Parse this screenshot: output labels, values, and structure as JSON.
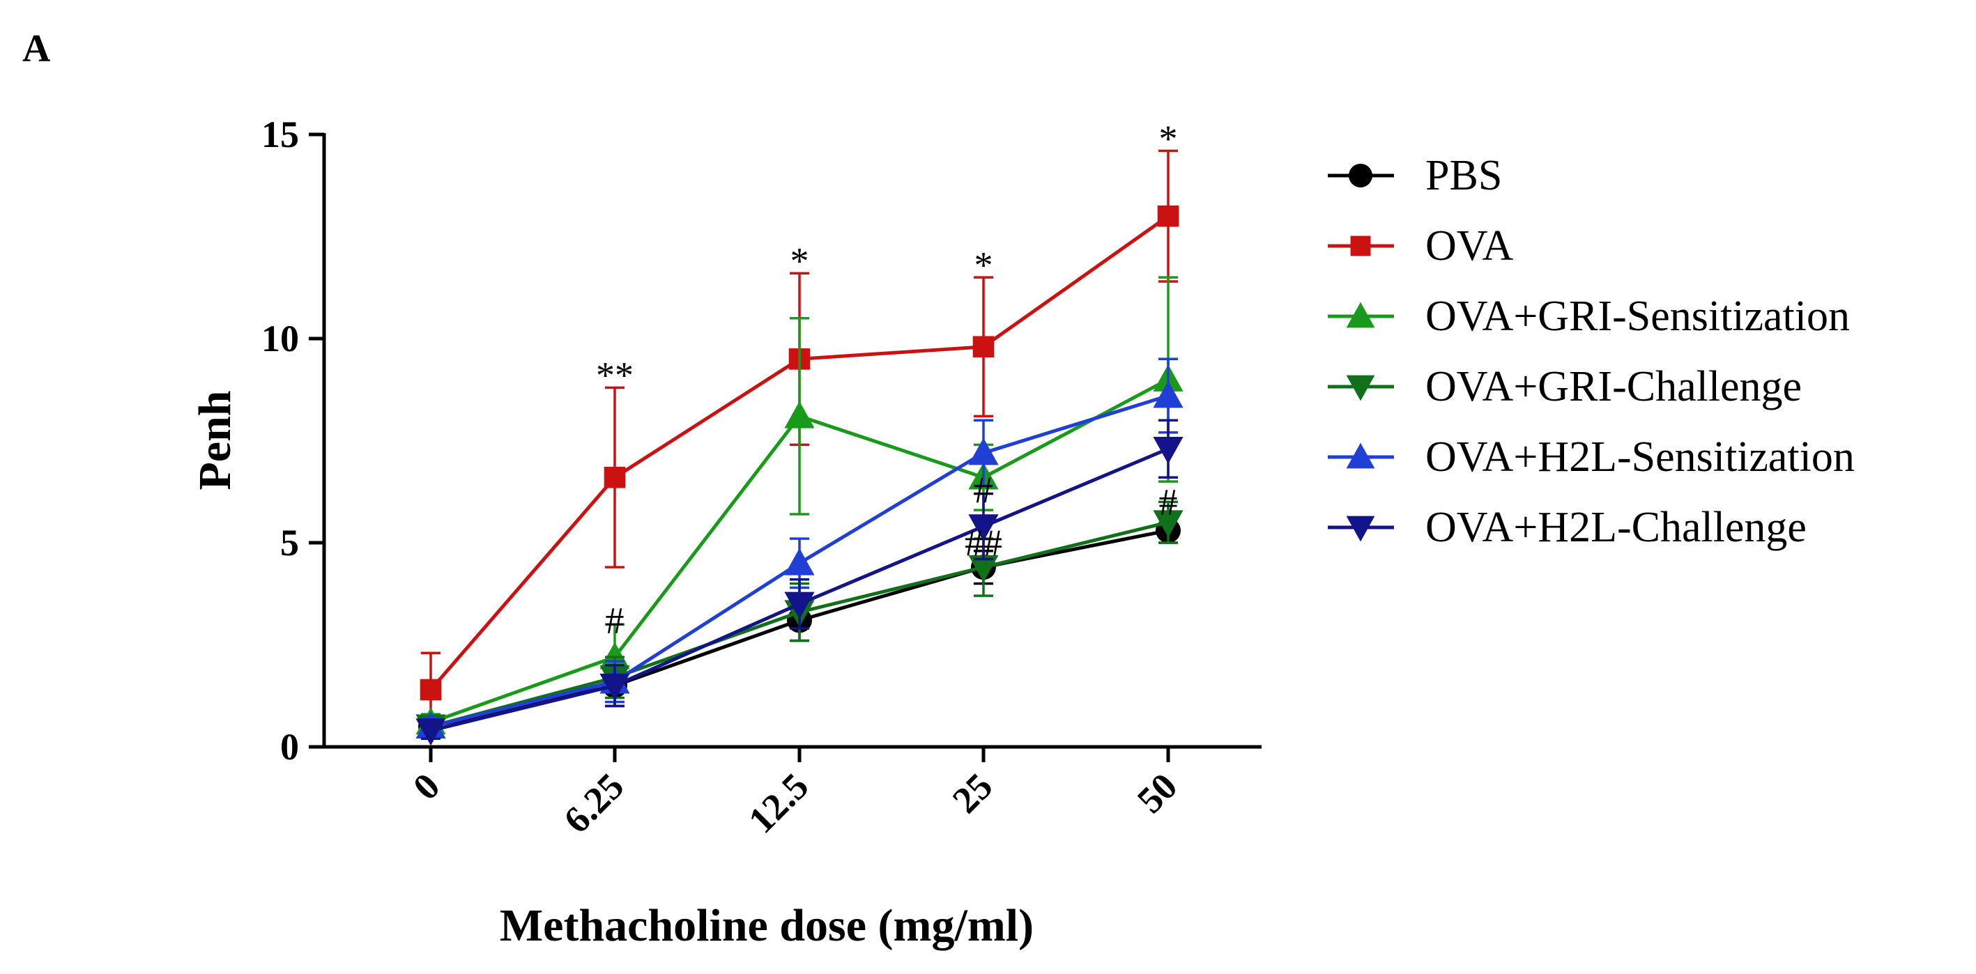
{
  "chart_data": {
    "type": "line",
    "panel_label": "A",
    "title": "",
    "xlabel": "Methacholine dose (mg/ml)",
    "ylabel": "Penh",
    "categories": [
      "0",
      "6.25",
      "12.5",
      "25",
      "50"
    ],
    "ylim": [
      0,
      15
    ],
    "yticks": [
      {
        "value": 0,
        "label": "0"
      },
      {
        "value": 5,
        "label": "5"
      },
      {
        "value": 10,
        "label": "10"
      },
      {
        "value": 15,
        "label": "15"
      }
    ],
    "grid": false,
    "legend_position": "right",
    "series": [
      {
        "name": "PBS",
        "color": "#000000",
        "marker": "circle",
        "values": [
          0.5,
          1.5,
          3.1,
          4.4,
          5.3
        ],
        "errors": [
          0.2,
          0.5,
          0.5,
          0.4,
          0.3
        ]
      },
      {
        "name": "OVA",
        "color": "#cc1111",
        "marker": "square",
        "values": [
          1.4,
          6.6,
          9.5,
          9.8,
          13.0
        ],
        "errors": [
          0.9,
          2.2,
          2.1,
          1.7,
          1.6
        ]
      },
      {
        "name": "OVA+GRI-Sensitization",
        "color": "#1a9a1a",
        "marker": "triangle-up",
        "values": [
          0.6,
          2.2,
          8.1,
          6.6,
          9.0
        ],
        "errors": [
          0.2,
          0.8,
          2.4,
          0.8,
          2.5
        ]
      },
      {
        "name": "OVA+GRI-Challenge",
        "color": "#11701a",
        "marker": "triangle-down",
        "values": [
          0.5,
          1.7,
          3.3,
          4.4,
          5.5
        ],
        "errors": [
          0.2,
          0.5,
          0.7,
          0.7,
          0.5
        ]
      },
      {
        "name": "OVA+H2L-Sensitization",
        "color": "#1f3fd6",
        "marker": "triangle-up",
        "values": [
          0.5,
          1.6,
          4.5,
          7.2,
          8.6
        ],
        "errors": [
          0.2,
          0.5,
          0.6,
          0.8,
          0.9
        ]
      },
      {
        "name": "OVA+H2L-Challenge",
        "color": "#13138a",
        "marker": "triangle-down",
        "values": [
          0.4,
          1.5,
          3.5,
          5.4,
          7.3
        ],
        "errors": [
          0.2,
          0.5,
          0.6,
          0.8,
          0.7
        ]
      }
    ],
    "annotations": [
      {
        "text": "**",
        "category_index": 1,
        "y": 9.1
      },
      {
        "text": "#",
        "category_index": 1,
        "y": 3.1
      },
      {
        "text": "*",
        "category_index": 2,
        "y": 11.9
      },
      {
        "text": "*",
        "category_index": 3,
        "y": 11.8
      },
      {
        "text": "#",
        "category_index": 3,
        "y": 6.3
      },
      {
        "text": "##",
        "category_index": 3,
        "y": 5.0
      },
      {
        "text": "*",
        "category_index": 4,
        "y": 14.9
      },
      {
        "text": "#",
        "category_index": 4,
        "y": 6.0
      }
    ]
  }
}
